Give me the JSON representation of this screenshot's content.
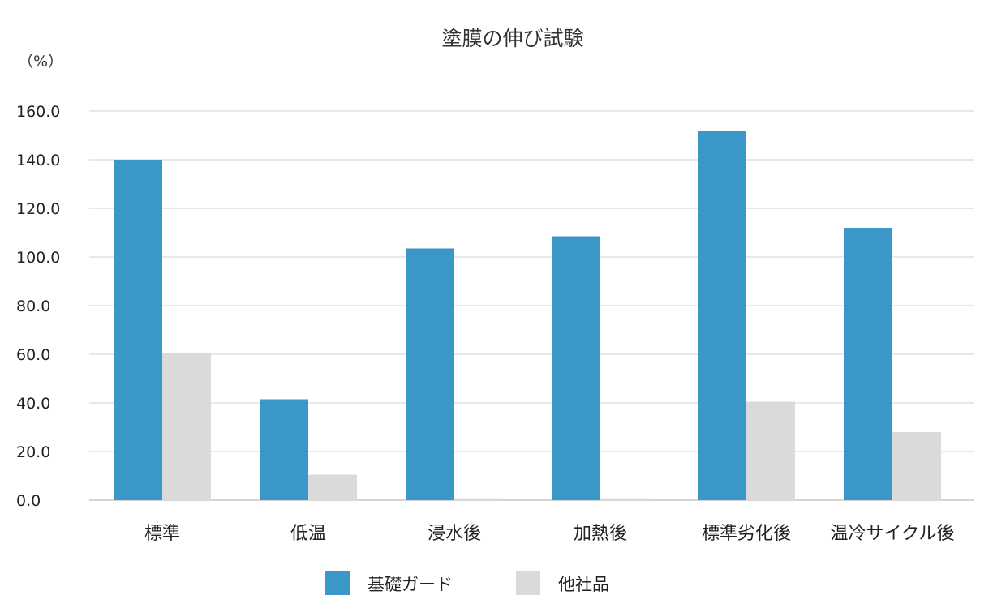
{
  "chart_data": {
    "type": "bar",
    "title": "塗膜の伸び試験",
    "ylabel": "（%）",
    "xlabel": "",
    "ylim": [
      0,
      160
    ],
    "yticks": [
      0,
      20,
      40,
      60,
      80,
      100,
      120,
      140,
      160
    ],
    "ytick_labels": [
      "0.0",
      "20.0",
      "40.0",
      "60.0",
      "80.0",
      "100.0",
      "120.0",
      "140.0",
      "160.0"
    ],
    "categories": [
      "標準",
      "低温",
      "浸水後",
      "加熱後",
      "標準劣化後",
      "温冷サイクル後"
    ],
    "series": [
      {
        "name": "基礎ガード",
        "color": "#3a97c7",
        "values": [
          140,
          41.5,
          103.5,
          108.5,
          152,
          112
        ]
      },
      {
        "name": "他社品",
        "color": "#dadada",
        "values": [
          60.5,
          10.5,
          0.8,
          0.8,
          40.5,
          28
        ]
      }
    ],
    "grid": true,
    "legend_position": "bottom"
  }
}
